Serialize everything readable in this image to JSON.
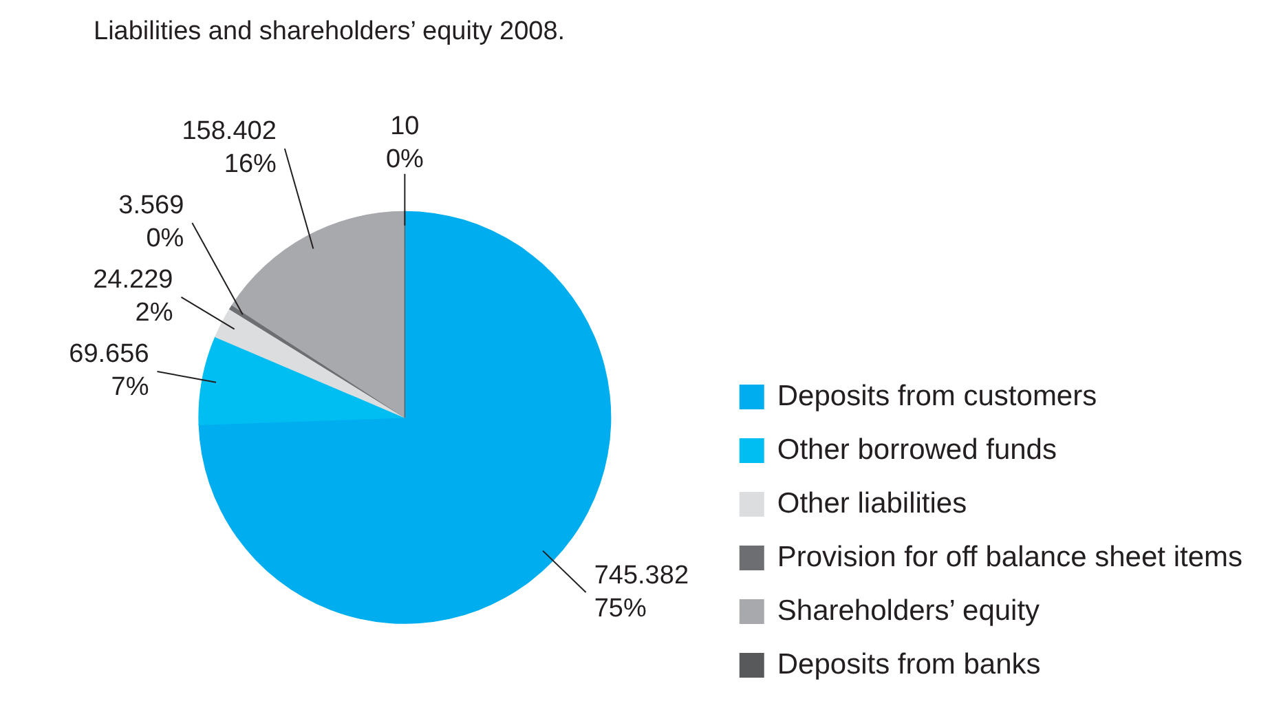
{
  "chart_data": {
    "type": "pie",
    "title": "Liabilities and shareholders’ equity 2008.",
    "categories": [
      "Deposits from customers",
      "Other borrowed funds",
      "Other liabilities",
      "Provision for off balance sheet items",
      "Shareholders’ equity",
      "Deposits from banks"
    ],
    "values": [
      745.382,
      69.656,
      24.229,
      3.569,
      158.402,
      0.01
    ],
    "colors": [
      "#00aeef",
      "#00bdf2",
      "#dcddde",
      "#6d6e71",
      "#a7a9ac",
      "#58595b"
    ],
    "value_labels": [
      "745.382\n75%",
      "69.656\n7%",
      "24.229\n2%",
      "3.569\n0%",
      "158.402\n16%",
      "10\n0%"
    ],
    "legend": "bottom right"
  }
}
